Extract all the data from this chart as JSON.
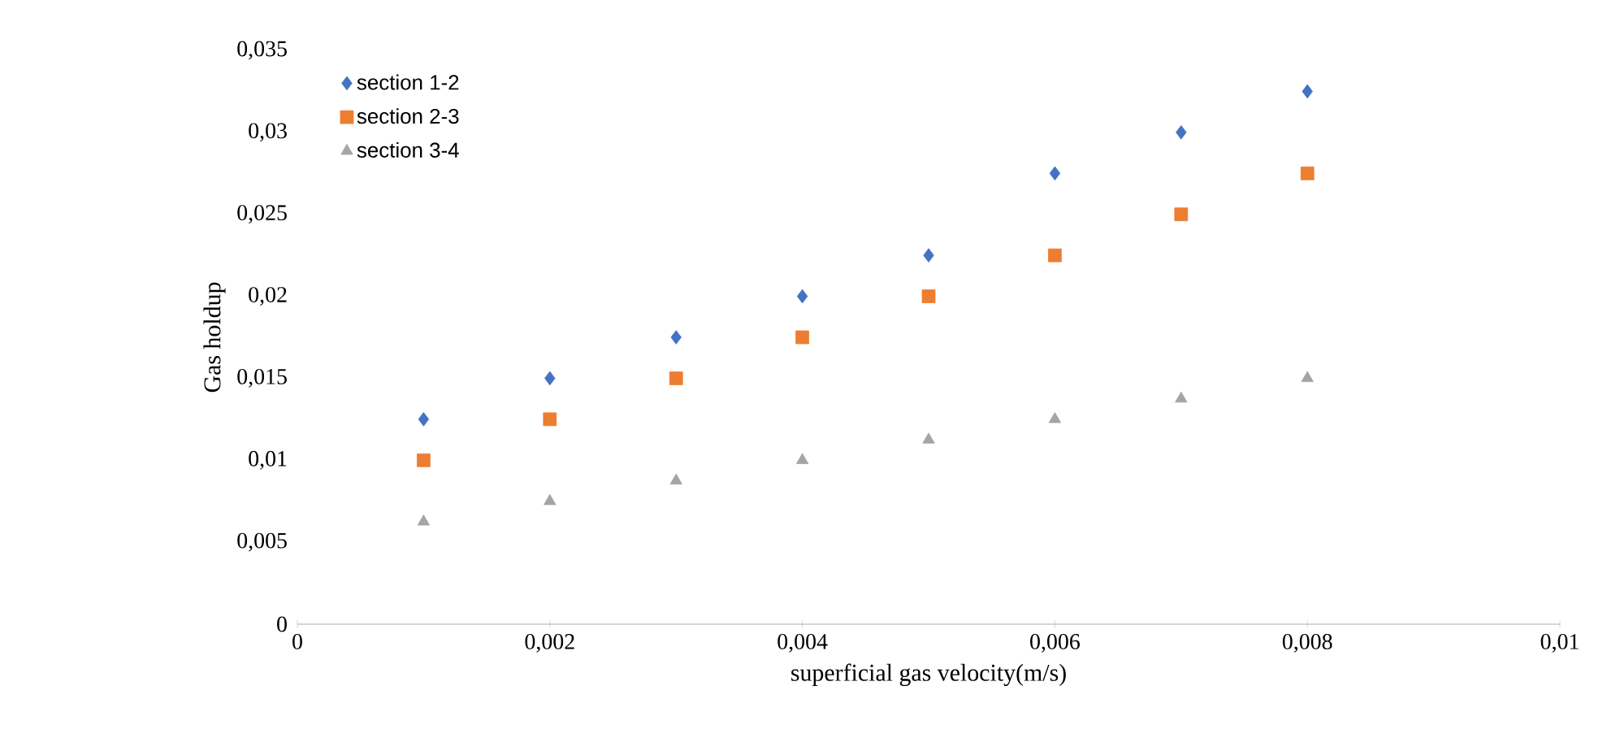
{
  "chart_data": {
    "type": "scatter",
    "xlabel": "superficial gas velocity(m/s)",
    "ylabel": "Gas holdup",
    "x": [
      0.001,
      0.002,
      0.003,
      0.004,
      0.005,
      0.006,
      0.007,
      0.008
    ],
    "series": [
      {
        "name": "section 1-2",
        "color": "#4472c4",
        "marker": "diamond",
        "values": [
          0.0125,
          0.015,
          0.0175,
          0.02,
          0.0225,
          0.0275,
          0.03,
          0.0325
        ]
      },
      {
        "name": "section 2-3",
        "color": "#ed7d31",
        "marker": "square",
        "values": [
          0.01,
          0.0125,
          0.015,
          0.0175,
          0.02,
          0.0225,
          0.025,
          0.0275
        ]
      },
      {
        "name": "section 3-4",
        "color": "#a5a5a5",
        "marker": "triangle",
        "values": [
          0.00625,
          0.0075,
          0.00875,
          0.01,
          0.01125,
          0.0125,
          0.01375,
          0.015
        ]
      }
    ],
    "xlim": [
      0,
      0.01
    ],
    "ylim": [
      0,
      0.035
    ],
    "xticks": [
      0,
      {
        "value": 0.002,
        "label": "0,002"
      },
      {
        "value": 0.004,
        "label": "0,004"
      },
      {
        "value": 0.006,
        "label": "0,006"
      },
      {
        "value": 0.008,
        "label": "0,008"
      },
      {
        "value": 0.01,
        "label": "0,01"
      }
    ],
    "yticks": [
      0,
      {
        "value": 0.005,
        "label": "0,005"
      },
      {
        "value": 0.01,
        "label": "0,01"
      },
      {
        "value": 0.015,
        "label": "0,015"
      },
      {
        "value": 0.02,
        "label": "0,02"
      },
      {
        "value": 0.025,
        "label": "0,025"
      },
      {
        "value": 0.03,
        "label": "0,03"
      },
      {
        "value": 0.035,
        "label": "0,035"
      }
    ],
    "legend": "top left",
    "grid": false
  }
}
